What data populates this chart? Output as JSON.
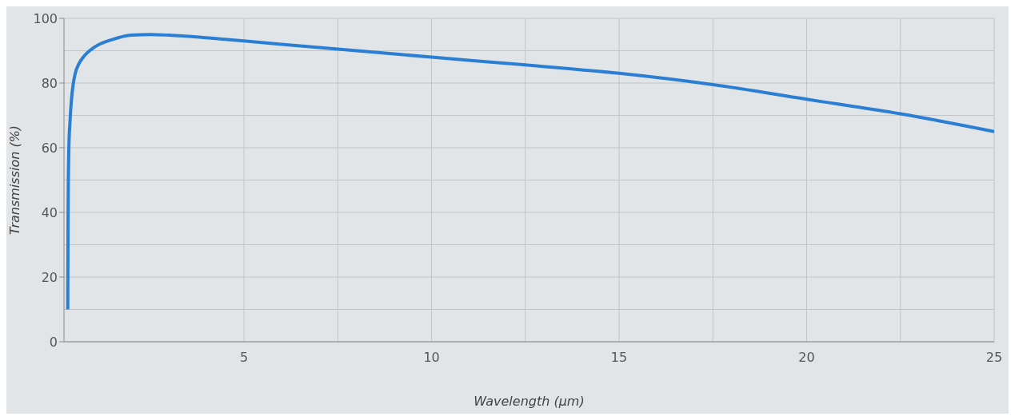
{
  "chart_data": {
    "type": "line",
    "xlabel": "Wavelength (µm)",
    "ylabel": "Transmission (%)",
    "x": [
      0.3,
      0.31,
      0.33,
      0.36,
      0.4,
      0.45,
      0.5,
      0.6,
      0.75,
      1,
      1.5,
      2,
      2.5,
      3,
      4,
      5,
      6,
      7.5,
      10,
      12.5,
      15,
      17.5,
      20,
      22.5,
      25
    ],
    "series": [
      {
        "color": "#2a7fd4",
        "values": [
          10,
          40,
          60,
          68,
          75,
          80,
          83,
          86,
          88.5,
          91,
          93.5,
          94.8,
          95,
          94.8,
          94,
          93,
          92,
          90.5,
          88,
          85.6,
          83,
          79.5,
          75,
          70.5,
          65
        ]
      }
    ],
    "xlim": [
      0.2,
      25
    ],
    "xticks": [
      5,
      10,
      15,
      20,
      25
    ],
    "ylim": [
      0,
      100
    ],
    "yticks": [
      0,
      20,
      40,
      60,
      80,
      100
    ],
    "grid": true,
    "marker": "none",
    "line_style": "solid",
    "legend": false
  }
}
